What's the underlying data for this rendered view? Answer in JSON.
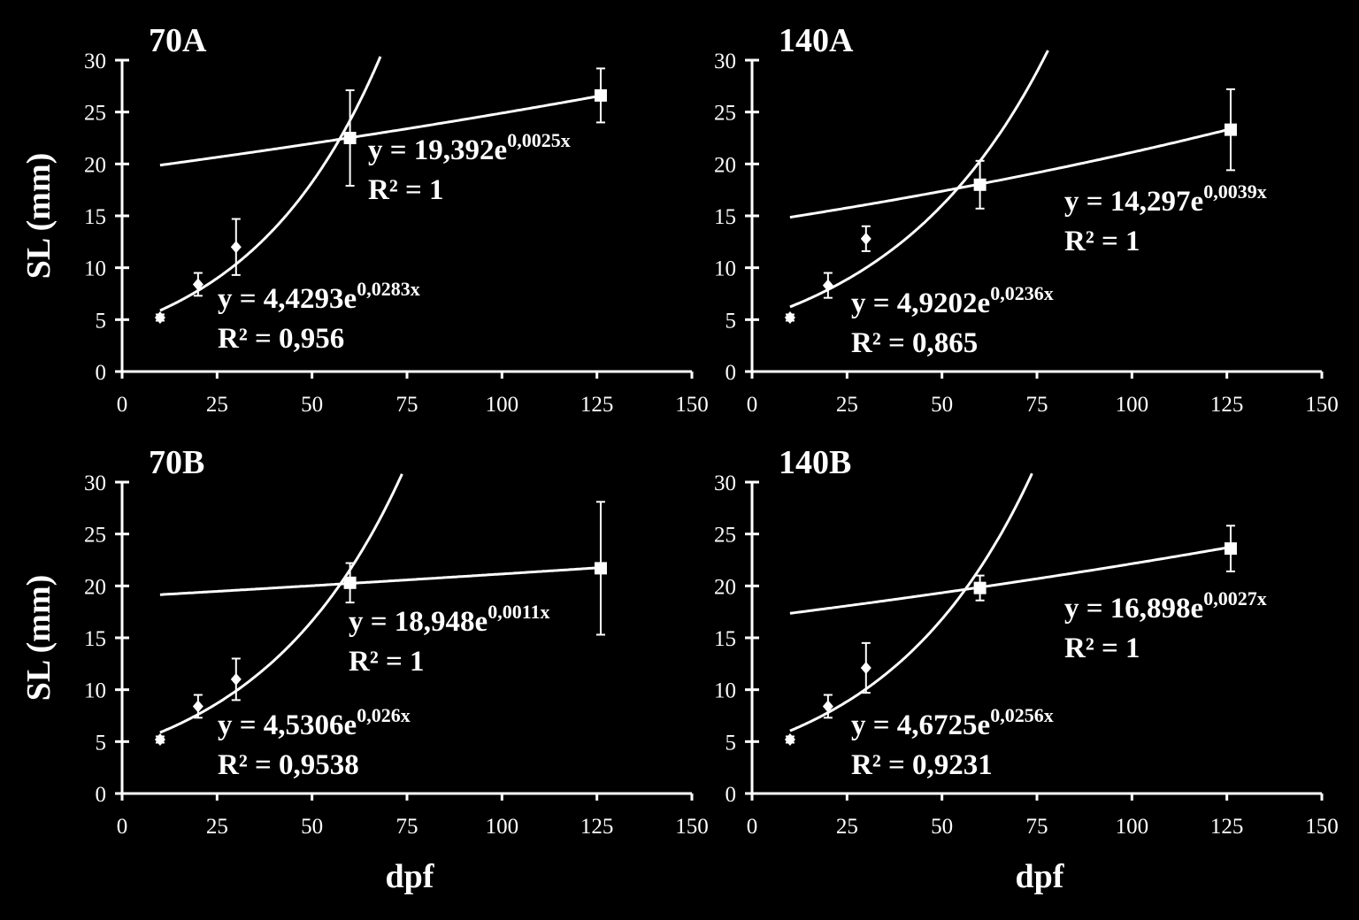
{
  "figure": {
    "background": "#000000",
    "foreground": "#ffffff",
    "ylabel": "SL (mm)",
    "xlabel": "dpf"
  },
  "chart_data": [
    {
      "type": "scatter",
      "title": "70A",
      "xlabel": "",
      "ylabel": "SL (mm)",
      "xlim": [
        0,
        150
      ],
      "ylim": [
        0,
        30
      ],
      "xticks": [
        0,
        25,
        50,
        75,
        100,
        125,
        150
      ],
      "yticks": [
        0,
        5,
        10,
        15,
        20,
        25,
        30
      ],
      "series": [
        {
          "marker": "diamond",
          "points": [
            {
              "x": 10,
              "y": 5.2,
              "err": 0.3
            },
            {
              "x": 20,
              "y": 8.4,
              "err": 1.1
            },
            {
              "x": 30,
              "y": 12.0,
              "err": 2.7
            }
          ],
          "trend": {
            "a": 4.4293,
            "b": 0.0283,
            "xrange": [
              10,
              68
            ]
          },
          "equation": {
            "base": "y = 4,4293e",
            "exp": "0,0283x",
            "r2": "R² = 0,956"
          }
        },
        {
          "marker": "square",
          "points": [
            {
              "x": 60,
              "y": 22.5,
              "err": 4.6
            },
            {
              "x": 126,
              "y": 26.6,
              "err": 2.6
            }
          ],
          "trend": {
            "a": 19.392,
            "b": 0.0025,
            "xrange": [
              10,
              126
            ]
          },
          "equation": {
            "base": "y = 19,392e",
            "exp": "0,0025x",
            "r2": "R² = 1"
          }
        }
      ]
    },
    {
      "type": "scatter",
      "title": "140A",
      "xlabel": "",
      "ylabel": "",
      "xlim": [
        0,
        150
      ],
      "ylim": [
        0,
        30
      ],
      "xticks": [
        0,
        25,
        50,
        75,
        100,
        125,
        150
      ],
      "yticks": [
        0,
        5,
        10,
        15,
        20,
        25,
        30
      ],
      "series": [
        {
          "marker": "diamond",
          "points": [
            {
              "x": 10,
              "y": 5.2,
              "err": 0.3
            },
            {
              "x": 20,
              "y": 8.3,
              "err": 1.2
            },
            {
              "x": 30,
              "y": 12.8,
              "err": 1.2
            }
          ],
          "trend": {
            "a": 4.9202,
            "b": 0.0236,
            "xrange": [
              10,
              80
            ]
          },
          "equation": {
            "base": "y = 4,9202e",
            "exp": "0,0236x",
            "r2": "R² = 0,865"
          }
        },
        {
          "marker": "square",
          "points": [
            {
              "x": 60,
              "y": 18.0,
              "err": 2.3
            },
            {
              "x": 126,
              "y": 23.3,
              "err": 3.9
            }
          ],
          "trend": {
            "a": 14.297,
            "b": 0.0039,
            "xrange": [
              10,
              126
            ]
          },
          "equation": {
            "base": "y = 14,297e",
            "exp": "0,0039x",
            "r2": "R² = 1"
          }
        }
      ]
    },
    {
      "type": "scatter",
      "title": "70B",
      "xlabel": "dpf",
      "ylabel": "SL (mm)",
      "xlim": [
        0,
        150
      ],
      "ylim": [
        0,
        30
      ],
      "xticks": [
        0,
        25,
        50,
        75,
        100,
        125,
        150
      ],
      "yticks": [
        0,
        5,
        10,
        15,
        20,
        25,
        30
      ],
      "series": [
        {
          "marker": "diamond",
          "points": [
            {
              "x": 10,
              "y": 5.2,
              "err": 0.3
            },
            {
              "x": 20,
              "y": 8.4,
              "err": 1.1
            },
            {
              "x": 30,
              "y": 11.0,
              "err": 2.0
            }
          ],
          "trend": {
            "a": 4.5306,
            "b": 0.026,
            "xrange": [
              10,
              80
            ]
          },
          "equation": {
            "base": "y = 4,5306e",
            "exp": "0,026x",
            "r2": "R² = 0,9538"
          }
        },
        {
          "marker": "square",
          "points": [
            {
              "x": 60,
              "y": 20.3,
              "err": 1.9
            },
            {
              "x": 126,
              "y": 21.7,
              "err": 6.4
            }
          ],
          "trend": {
            "a": 18.948,
            "b": 0.0011,
            "xrange": [
              10,
              126
            ]
          },
          "equation": {
            "base": "y = 18,948e",
            "exp": "0,0011x",
            "r2": "R² = 1"
          }
        }
      ]
    },
    {
      "type": "scatter",
      "title": "140B",
      "xlabel": "dpf",
      "ylabel": "",
      "xlim": [
        0,
        150
      ],
      "ylim": [
        0,
        30
      ],
      "xticks": [
        0,
        25,
        50,
        75,
        100,
        125,
        150
      ],
      "yticks": [
        0,
        5,
        10,
        15,
        20,
        25,
        30
      ],
      "series": [
        {
          "marker": "diamond",
          "points": [
            {
              "x": 10,
              "y": 5.2,
              "err": 0.3
            },
            {
              "x": 20,
              "y": 8.4,
              "err": 1.1
            },
            {
              "x": 30,
              "y": 12.1,
              "err": 2.4
            }
          ],
          "trend": {
            "a": 4.6725,
            "b": 0.0256,
            "xrange": [
              10,
              80
            ]
          },
          "equation": {
            "base": "y = 4,6725e",
            "exp": "0,0256x",
            "r2": "R² = 0,9231"
          }
        },
        {
          "marker": "square",
          "points": [
            {
              "x": 60,
              "y": 19.8,
              "err": 1.2
            },
            {
              "x": 126,
              "y": 23.6,
              "err": 2.2
            }
          ],
          "trend": {
            "a": 16.898,
            "b": 0.0027,
            "xrange": [
              10,
              126
            ]
          },
          "equation": {
            "base": "y = 16,898e",
            "exp": "0,0027x",
            "r2": "R² = 1"
          }
        }
      ]
    }
  ]
}
